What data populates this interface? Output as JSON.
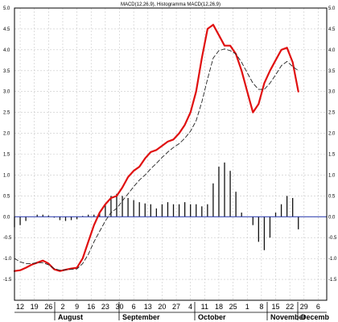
{
  "chart_data": {
    "type": "line",
    "title": "MACD(12,26,9), Histogramma MACD(12,26,9)",
    "ylim": [
      -2.0,
      5.0
    ],
    "y_ticks": [
      5.0,
      4.5,
      4.0,
      3.5,
      3.0,
      2.5,
      2.0,
      1.5,
      1.0,
      0.5,
      0.0,
      -0.5,
      -1.0,
      -1.5
    ],
    "y_tick_labels": [
      "5.0",
      "4.5",
      "4.0",
      "3.5",
      "3.0",
      "2.5",
      "2.0",
      "1.5",
      "1.0",
      "0.5",
      "0.0",
      "-0.5",
      "-1.0",
      "-1.5"
    ],
    "x_tick_labels": [
      "12",
      "19",
      "26",
      "2",
      "9",
      "16",
      "23",
      "30",
      "6",
      "13",
      "20",
      "27",
      "4",
      "11",
      "18",
      "25",
      "1",
      "8",
      "15",
      "22",
      "29",
      "6"
    ],
    "months": [
      "August",
      "September",
      "October",
      "November",
      "Decemb"
    ],
    "grid": true,
    "series": [
      {
        "color": "#e01010",
        "style": "solid",
        "x": [
          0,
          2,
          4,
          6,
          8,
          10,
          12,
          14,
          16,
          18,
          20,
          22,
          24,
          26,
          28,
          30,
          32,
          34,
          36,
          38,
          40,
          42,
          44,
          46,
          48,
          50,
          52,
          54,
          56,
          58,
          60,
          62,
          64,
          66,
          68,
          70,
          72,
          74,
          76,
          78,
          80,
          82,
          84,
          86,
          88,
          90,
          92,
          94,
          96,
          98,
          100,
          102,
          104
        ],
        "values": [
          -1.3,
          -1.28,
          -1.22,
          -1.15,
          -1.1,
          -1.05,
          -1.12,
          -1.26,
          -1.3,
          -1.27,
          -1.24,
          -1.22,
          -1.0,
          -0.6,
          -0.2,
          0.1,
          0.3,
          0.45,
          0.5,
          0.7,
          0.95,
          1.1,
          1.2,
          1.4,
          1.55,
          1.6,
          1.7,
          1.8,
          1.85,
          2.0,
          2.2,
          2.5,
          3.0,
          3.8,
          4.5,
          4.6,
          4.35,
          4.1,
          4.1,
          3.9,
          3.5,
          3.0,
          2.5,
          2.7,
          3.2,
          3.5,
          3.75,
          4.0,
          4.05,
          3.7,
          3.0,
          null,
          null
        ]
      },
      {
        "color": "#222222",
        "style": "dashed",
        "x": [
          0,
          2,
          4,
          6,
          8,
          10,
          12,
          14,
          16,
          18,
          20,
          22,
          24,
          26,
          28,
          30,
          32,
          34,
          36,
          38,
          40,
          42,
          44,
          46,
          48,
          50,
          52,
          54,
          56,
          58,
          60,
          62,
          64,
          66,
          68,
          70,
          72,
          74,
          76,
          78,
          80,
          82,
          84,
          86,
          88,
          90,
          92,
          94,
          96,
          98,
          100,
          102,
          104
        ],
        "values": [
          -1.0,
          -1.08,
          -1.12,
          -1.12,
          -1.1,
          -1.1,
          -1.15,
          -1.24,
          -1.28,
          -1.27,
          -1.26,
          -1.25,
          -1.12,
          -0.9,
          -0.6,
          -0.35,
          -0.1,
          0.1,
          0.2,
          0.38,
          0.55,
          0.72,
          0.88,
          1.0,
          1.15,
          1.28,
          1.42,
          1.55,
          1.66,
          1.75,
          1.88,
          2.05,
          2.3,
          2.75,
          3.3,
          3.8,
          3.98,
          4.02,
          3.98,
          3.9,
          3.7,
          3.45,
          3.2,
          3.05,
          3.05,
          3.2,
          3.4,
          3.62,
          3.72,
          3.6,
          3.5,
          null,
          null
        ]
      }
    ],
    "histogram": {
      "color": "#111111",
      "x": [
        0,
        2,
        4,
        6,
        8,
        10,
        12,
        14,
        16,
        18,
        20,
        22,
        24,
        26,
        28,
        30,
        32,
        34,
        36,
        38,
        40,
        42,
        44,
        46,
        48,
        50,
        52,
        54,
        56,
        58,
        60,
        62,
        64,
        66,
        68,
        70,
        72,
        74,
        76,
        78,
        80,
        82,
        84,
        86,
        88,
        90,
        92,
        94,
        96,
        98,
        100
      ],
      "values": [
        -0.25,
        -0.2,
        -0.1,
        0.0,
        0.05,
        0.05,
        0.03,
        -0.02,
        -0.08,
        -0.1,
        -0.08,
        -0.06,
        0.02,
        0.05,
        0.05,
        0.1,
        0.3,
        0.5,
        0.55,
        0.5,
        0.45,
        0.4,
        0.35,
        0.32,
        0.3,
        0.2,
        0.3,
        0.35,
        0.3,
        0.3,
        0.35,
        0.3,
        0.3,
        0.25,
        0.3,
        0.8,
        1.2,
        1.3,
        1.1,
        0.6,
        0.1,
        0.0,
        -0.2,
        -0.6,
        -0.8,
        -0.5,
        0.1,
        0.3,
        0.5,
        0.45,
        -0.3
      ]
    },
    "zero_line_color": "#2233aa"
  }
}
